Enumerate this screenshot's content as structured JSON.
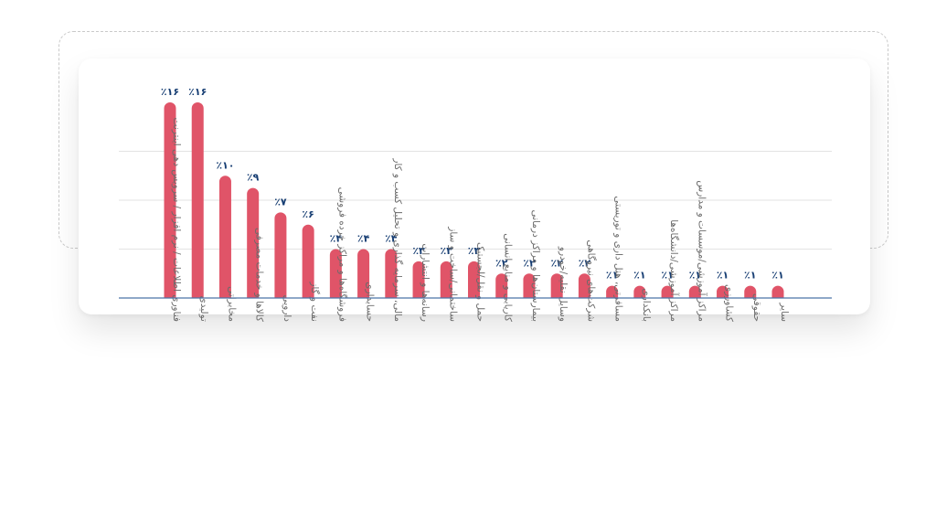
{
  "chart_data": {
    "type": "bar",
    "categories": [
      "فناوری اطلاعات / نرم افزار / سرویس دهی اینترنت",
      "تولیدی",
      "مخابراتی",
      "کالاها و خدمات مصرفی",
      "دارویی",
      "نفت و گاز",
      "فروشگاه‌ها و مراکز خرده فروشی",
      "حسابداری",
      "مالی، سرمایه گذاری و تحلیل کسب و کار",
      "رسانه‌ها و انتشارات",
      "ساختمانی/ساخت و ساز",
      "حمل و نقل/لجستیک",
      "کاریابی و منابع انسانی",
      "بیمارستان‌ها و مراکز درمانی",
      "وسایل نقلیه/خودرو",
      "شرکت‌های نیروگاهی",
      "مسافرتی، هتل داری و توریستی",
      "بانکداری",
      "مراکز آموزشی/دانشگاه‌ها",
      "مراکز آموزشی/موسسات و مدارس",
      "کشاورزی",
      "حقوقی",
      "سایر"
    ],
    "values": [
      16,
      16,
      10,
      9,
      7,
      6,
      4,
      4,
      4,
      3,
      3,
      3,
      2,
      2,
      2,
      2,
      1,
      1,
      1,
      1,
      1,
      1,
      1
    ],
    "data_labels": [
      "٪۱۶",
      "٪۱۶",
      "٪۱۰",
      "٪۹",
      "٪۷",
      "٪۶",
      "٪۴",
      "٪۴",
      "٪۴",
      "٪۳",
      "٪۳",
      "٪۳",
      "٪۲",
      "٪۲",
      "٪۲",
      "٪۲",
      "٪۱",
      "٪۱",
      "٪۱",
      "٪۱",
      "٪۱",
      "٪۱",
      "٪۱"
    ],
    "ylim": [
      0,
      16
    ],
    "grid": true,
    "bar_color": "#e05468",
    "label_color": "#173e73",
    "axis_color": "#4a74a8",
    "grid_color": "#e3e3e3"
  }
}
